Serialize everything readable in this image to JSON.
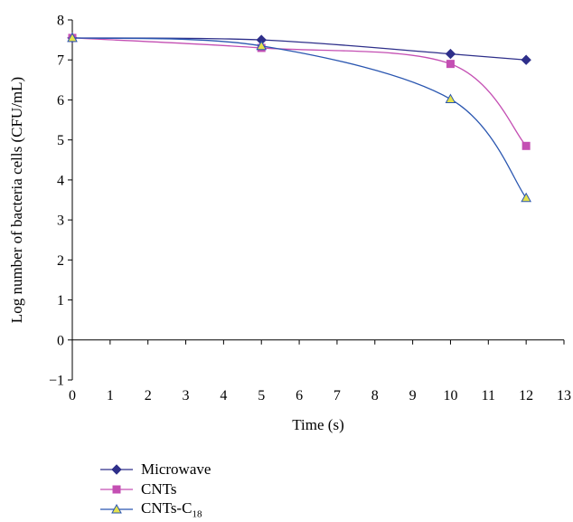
{
  "chart_data": {
    "type": "line",
    "title": "",
    "xlabel": "Time (s)",
    "ylabel": "Log number of bacteria cells (CFU/mL)",
    "xlim": [
      0,
      13
    ],
    "ylim": [
      -1,
      8
    ],
    "x_ticks": [
      "0",
      "1",
      "2",
      "3",
      "4",
      "5",
      "6",
      "7",
      "8",
      "9",
      "10",
      "11",
      "12",
      "13"
    ],
    "y_ticks": [
      "−1",
      "0",
      "1",
      "2",
      "3",
      "4",
      "5",
      "6",
      "7",
      "8"
    ],
    "grid": false,
    "legend_position": "bottom-left",
    "series": [
      {
        "name": "Microwave",
        "color": "#2e2f8a",
        "marker": "diamond",
        "x": [
          0,
          5,
          10,
          12
        ],
        "y": [
          7.55,
          7.5,
          7.15,
          7.0
        ]
      },
      {
        "name": "CNTs",
        "color": "#c44fb3",
        "marker": "square",
        "x": [
          0,
          5,
          10,
          12
        ],
        "y": [
          7.55,
          7.3,
          6.9,
          4.85
        ]
      },
      {
        "name": "CNTs-C18",
        "name_main": "CNTs-C",
        "name_sub": "18",
        "color": "#2a56b0",
        "marker_fill": "#e5e24c",
        "marker": "triangle",
        "x": [
          0,
          5,
          10,
          12
        ],
        "y": [
          7.55,
          7.35,
          6.02,
          3.55
        ]
      }
    ]
  }
}
